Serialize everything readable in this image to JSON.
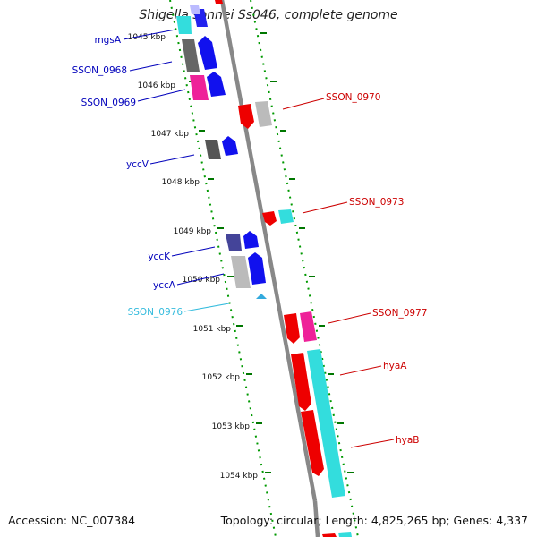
{
  "title": "Shigella sonnei Ss046, complete genome",
  "footer": {
    "accession": "Accession: NC_007384",
    "topology": "Topology: circular; Length: 4,825,265 bp; Genes: 4,337"
  },
  "colors": {
    "forward_label": "#0000bb",
    "reverse_label": "#cc0000",
    "rna_label": "#33bbdd",
    "tick": "#007700",
    "backbone": "#888888"
  },
  "ticks": [
    "1045 kbp",
    "1046 kbp",
    "1047 kbp",
    "1048 kbp",
    "1049 kbp",
    "1050 kbp",
    "1051 kbp",
    "1052 kbp",
    "1053 kbp",
    "1054 kbp"
  ],
  "forward_labels": [
    "mgsA",
    "SSON_0968",
    "SSON_0969",
    "yccV",
    "yccK",
    "yccA"
  ],
  "rna_labels": [
    "SSON_0976"
  ],
  "reverse_labels": [
    "SSON_0970",
    "SSON_0973",
    "SSON_0977",
    "hyaA",
    "hyaB"
  ]
}
